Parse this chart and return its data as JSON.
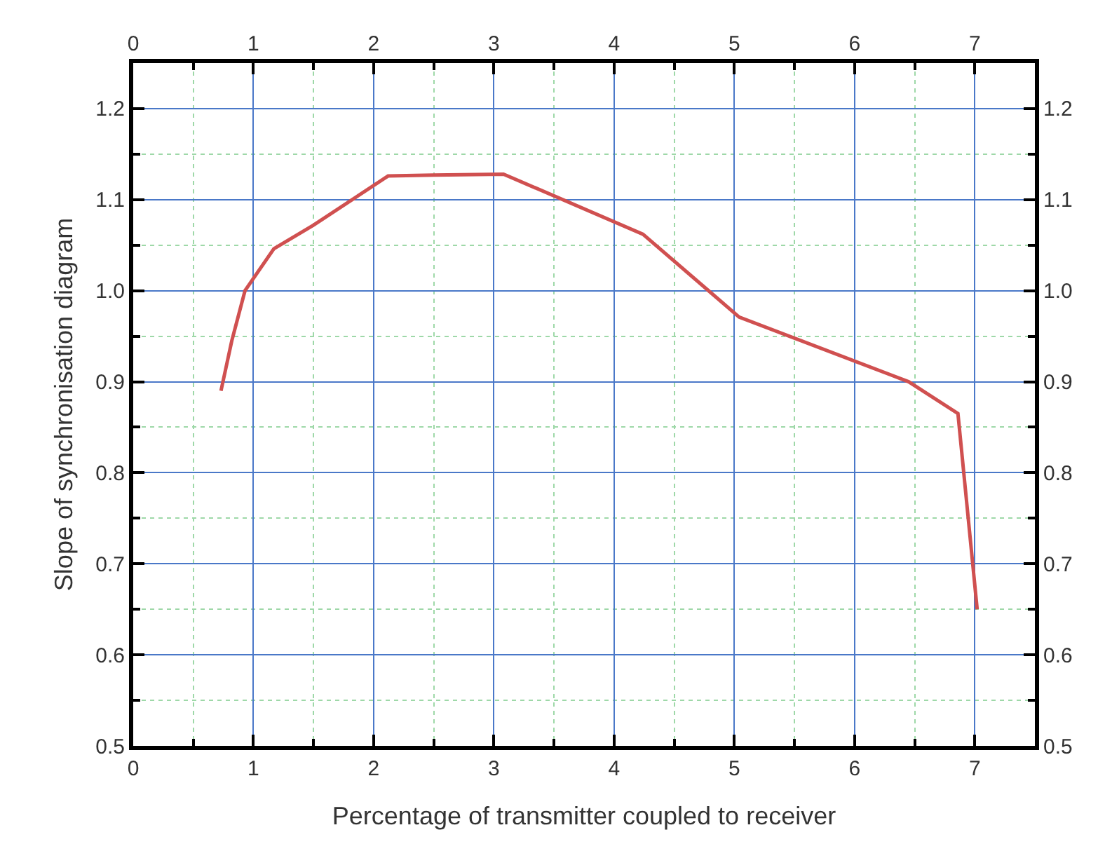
{
  "chart_data": {
    "type": "line",
    "xlabel": "Percentage of transmitter coupled to receiver",
    "ylabel": "Slope of synchronisation diagram",
    "x": [
      0.73,
      0.82,
      0.93,
      1.17,
      1.5,
      2.12,
      2.5,
      3.08,
      4.24,
      5.04,
      6.45,
      6.86,
      7.02
    ],
    "series": [
      {
        "color": "#d05050",
        "values": [
          0.89,
          0.945,
          1.0,
          1.046,
          1.072,
          1.126,
          1.127,
          1.128,
          1.062,
          0.971,
          0.9,
          0.865,
          0.65
        ]
      }
    ],
    "xlim": [
      0,
      7.5
    ],
    "xticks": [
      0,
      {
        "value": 0.5,
        "label": null
      },
      1,
      {
        "value": 1.5,
        "label": null
      },
      2,
      {
        "value": 2.5,
        "label": null
      },
      3,
      {
        "value": 3.5,
        "label": null
      },
      4,
      {
        "value": 4.5,
        "label": null
      },
      5,
      {
        "value": 5.5,
        "label": null
      },
      6,
      {
        "value": 6.5,
        "label": null
      },
      7
    ],
    "ylim": [
      0.5,
      1.25
    ],
    "yticks": [
      0.5,
      {
        "value": 0.55,
        "label": null
      },
      0.6,
      {
        "value": 0.65,
        "label": null
      },
      0.7,
      {
        "value": 0.75,
        "label": null
      },
      0.8,
      {
        "value": 0.85,
        "label": null
      },
      0.9,
      {
        "value": 0.95,
        "label": null
      },
      {
        "value": 1,
        "label": "1.0"
      },
      {
        "value": 1.05,
        "label": null
      },
      1.1,
      {
        "value": 1.15,
        "label": null
      },
      1.2
    ],
    "x2lim": [
      0,
      7.5
    ],
    "x2ticks": [
      0,
      {
        "value": 0.5,
        "label": null
      },
      1,
      {
        "value": 1.5,
        "label": null
      },
      2,
      {
        "value": 2.5,
        "label": null
      },
      3,
      {
        "value": 3.5,
        "label": null
      },
      4,
      {
        "value": 4.5,
        "label": null
      },
      5,
      {
        "value": 5.5,
        "label": null
      },
      6,
      {
        "value": 6.5,
        "label": null
      },
      7
    ],
    "y2lim": [
      0.5,
      1.25
    ],
    "y2ticks": [
      0.5,
      {
        "value": 0.55,
        "label": null
      },
      0.6,
      {
        "value": 0.65,
        "label": null
      },
      0.7,
      {
        "value": 0.75,
        "label": null
      },
      0.8,
      {
        "value": 0.85,
        "label": null
      },
      0.9,
      {
        "value": 0.95,
        "label": null
      },
      {
        "value": 1,
        "label": "1.0"
      },
      {
        "value": 1.05,
        "label": null
      },
      1.1,
      {
        "value": 1.15,
        "label": null
      },
      1.2
    ],
    "grid": true,
    "marker": "none",
    "line_style": "solid"
  }
}
